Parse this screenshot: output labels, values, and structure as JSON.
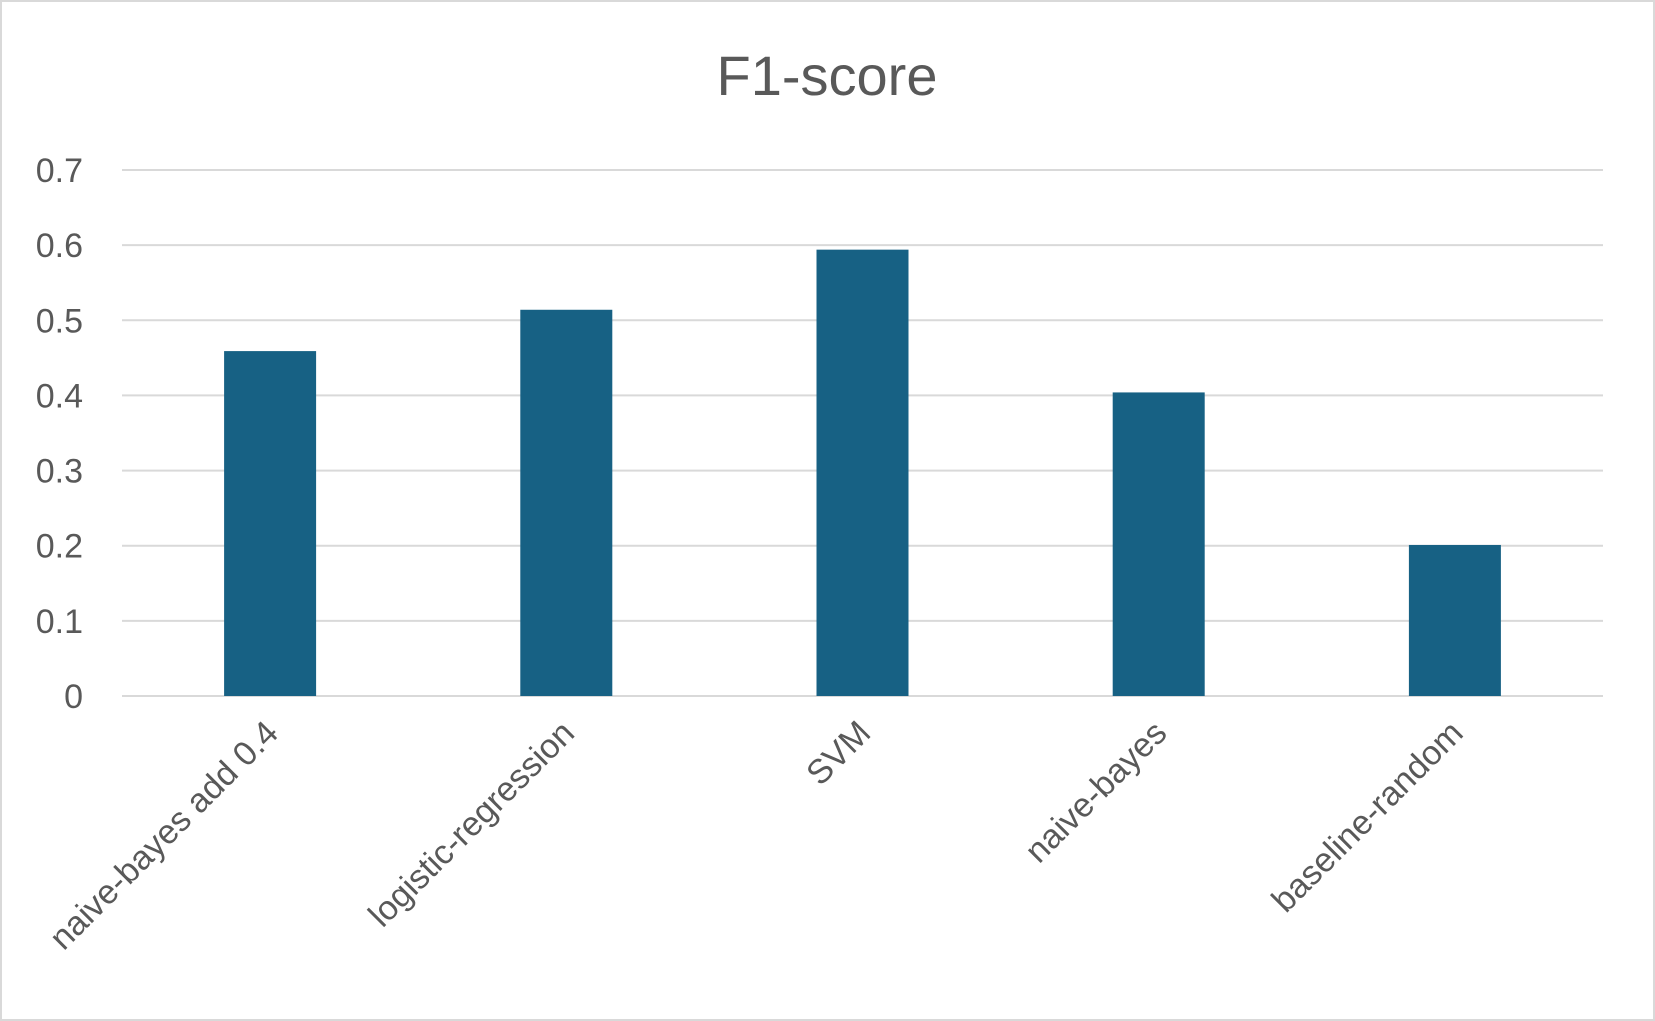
{
  "chart_data": {
    "type": "bar",
    "title": "F1-score",
    "xlabel": "",
    "ylabel": "",
    "categories": [
      "naive-bayes add 0.4",
      "logistic-regression",
      "SVM",
      "naive-bayes",
      "baseline-random"
    ],
    "values": [
      0.459,
      0.514,
      0.594,
      0.404,
      0.201
    ],
    "ylim": [
      0,
      0.7
    ],
    "yticks": [
      "0",
      "0.1",
      "0.2",
      "0.3",
      "0.4",
      "0.5",
      "0.6",
      "0.7"
    ],
    "grid": true,
    "legend": "none",
    "colors": {
      "bar": "#176184",
      "grid": "#d9d9d9",
      "text": "#595959"
    }
  }
}
